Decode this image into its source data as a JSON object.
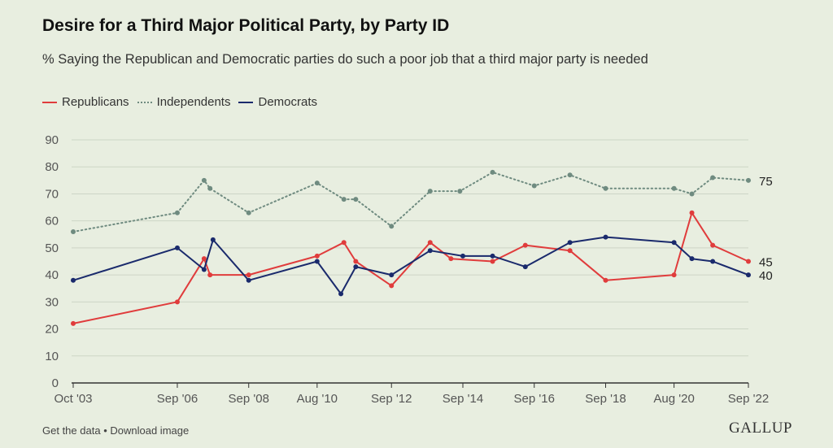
{
  "header": {
    "title": "Desire for a Third Major Political Party, by Party ID",
    "subtitle": "% Saying the Republican and Democratic parties do such a poor job that a third major party is needed"
  },
  "footer": {
    "get_data": "Get the data",
    "separator": "•",
    "download": "Download image",
    "logo": "GALLUP"
  },
  "chart_data": {
    "type": "line",
    "xlabel": "",
    "ylabel": "",
    "ylim": [
      0,
      90
    ],
    "yticks": [
      0,
      10,
      20,
      30,
      40,
      50,
      60,
      70,
      80,
      90
    ],
    "xlim": [
      "2003-10",
      "2022-09"
    ],
    "xticks": [
      {
        "date": "2003-10",
        "label": "Oct '03"
      },
      {
        "date": "2006-09",
        "label": "Sep '06"
      },
      {
        "date": "2008-09",
        "label": "Sep '08"
      },
      {
        "date": "2010-08",
        "label": "Aug '10"
      },
      {
        "date": "2012-09",
        "label": "Sep '12"
      },
      {
        "date": "2014-09",
        "label": "Sep '14"
      },
      {
        "date": "2016-09",
        "label": "Sep '16"
      },
      {
        "date": "2018-09",
        "label": "Sep '18"
      },
      {
        "date": "2020-08",
        "label": "Aug '20"
      },
      {
        "date": "2022-09",
        "label": "Sep '22"
      }
    ],
    "grid": true,
    "legend_position": "top-left",
    "series": [
      {
        "name": "Republicans",
        "color": "#e03c3c",
        "style": "solid",
        "end_label": "45",
        "points": [
          {
            "x": "2003-10",
            "y": 22
          },
          {
            "x": "2006-09",
            "y": 30
          },
          {
            "x": "2007-06",
            "y": 46
          },
          {
            "x": "2007-08",
            "y": 40
          },
          {
            "x": "2008-09",
            "y": 40
          },
          {
            "x": "2010-08",
            "y": 47
          },
          {
            "x": "2011-05",
            "y": 52
          },
          {
            "x": "2011-09",
            "y": 45
          },
          {
            "x": "2012-09",
            "y": 36
          },
          {
            "x": "2013-10",
            "y": 52
          },
          {
            "x": "2014-05",
            "y": 46
          },
          {
            "x": "2015-07",
            "y": 45
          },
          {
            "x": "2016-06",
            "y": 51
          },
          {
            "x": "2017-09",
            "y": 49
          },
          {
            "x": "2018-09",
            "y": 38
          },
          {
            "x": "2020-08",
            "y": 40
          },
          {
            "x": "2021-02",
            "y": 63
          },
          {
            "x": "2021-09",
            "y": 51
          },
          {
            "x": "2022-09",
            "y": 45
          }
        ]
      },
      {
        "name": "Independents",
        "color": "#6f8b80",
        "style": "dotted",
        "end_label": "75",
        "points": [
          {
            "x": "2003-10",
            "y": 56
          },
          {
            "x": "2006-09",
            "y": 63
          },
          {
            "x": "2007-06",
            "y": 75
          },
          {
            "x": "2007-08",
            "y": 72
          },
          {
            "x": "2008-09",
            "y": 63
          },
          {
            "x": "2010-08",
            "y": 74
          },
          {
            "x": "2011-05",
            "y": 68
          },
          {
            "x": "2011-09",
            "y": 68
          },
          {
            "x": "2012-09",
            "y": 58
          },
          {
            "x": "2013-10",
            "y": 71
          },
          {
            "x": "2014-08",
            "y": 71
          },
          {
            "x": "2015-07",
            "y": 78
          },
          {
            "x": "2016-09",
            "y": 73
          },
          {
            "x": "2017-09",
            "y": 77
          },
          {
            "x": "2018-09",
            "y": 72
          },
          {
            "x": "2020-08",
            "y": 72
          },
          {
            "x": "2021-02",
            "y": 70
          },
          {
            "x": "2021-09",
            "y": 76
          },
          {
            "x": "2022-09",
            "y": 75
          }
        ]
      },
      {
        "name": "Democrats",
        "color": "#1a2a6c",
        "style": "solid",
        "end_label": "40",
        "points": [
          {
            "x": "2003-10",
            "y": 38
          },
          {
            "x": "2006-09",
            "y": 50
          },
          {
            "x": "2007-06",
            "y": 42
          },
          {
            "x": "2007-09",
            "y": 53
          },
          {
            "x": "2008-09",
            "y": 38
          },
          {
            "x": "2010-08",
            "y": 45
          },
          {
            "x": "2011-04",
            "y": 33
          },
          {
            "x": "2011-09",
            "y": 43
          },
          {
            "x": "2012-09",
            "y": 40
          },
          {
            "x": "2013-10",
            "y": 49
          },
          {
            "x": "2014-09",
            "y": 47
          },
          {
            "x": "2015-07",
            "y": 47
          },
          {
            "x": "2016-06",
            "y": 43
          },
          {
            "x": "2017-09",
            "y": 52
          },
          {
            "x": "2018-09",
            "y": 54
          },
          {
            "x": "2020-08",
            "y": 52
          },
          {
            "x": "2021-02",
            "y": 46
          },
          {
            "x": "2021-09",
            "y": 45
          },
          {
            "x": "2022-09",
            "y": 40
          }
        ]
      }
    ]
  }
}
